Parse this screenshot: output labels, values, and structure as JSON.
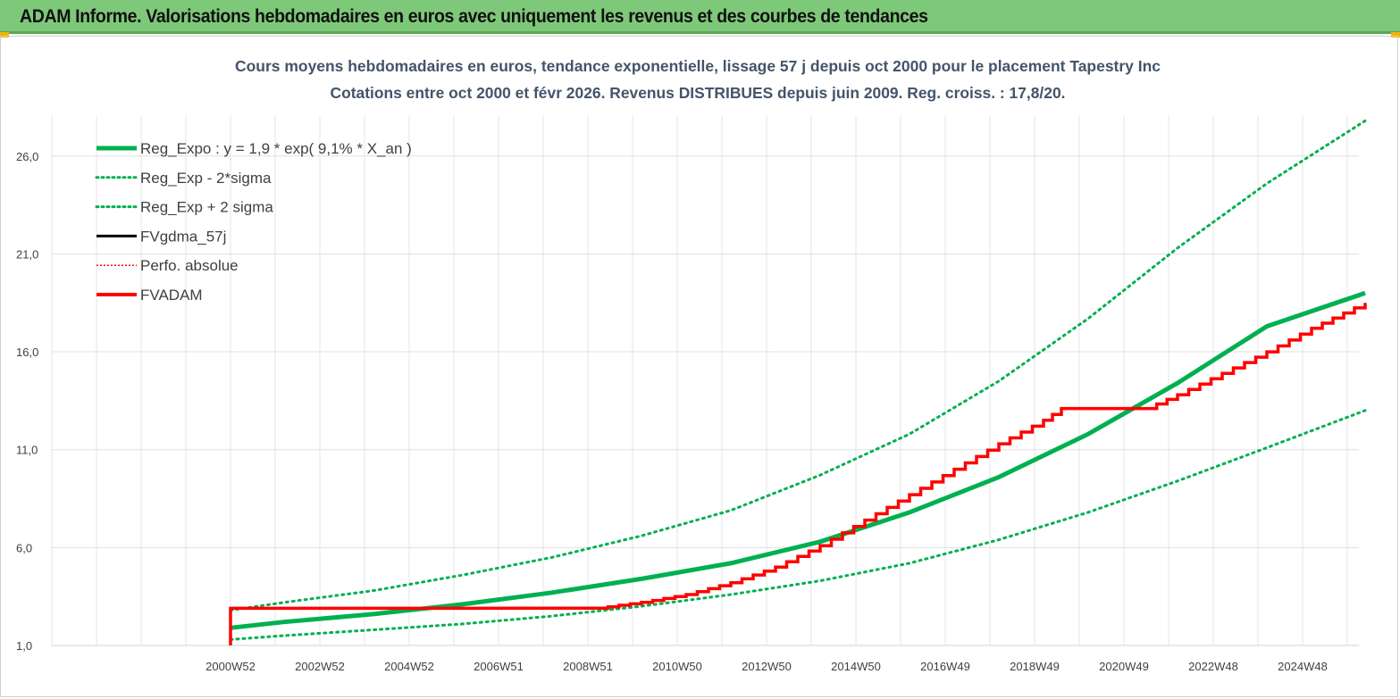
{
  "header": {
    "title": "ADAM Informe. Valorisations hebdomadaires en euros avec uniquement les revenus et des courbes de tendances"
  },
  "colors": {
    "header_bg": "#7ec87a",
    "reg_green": "#00b050",
    "fvadam_red": "#ff0000",
    "black": "#000000"
  },
  "chart_data": {
    "type": "line",
    "title_lines": [
      "Cours moyens hebdomadaires en euros, tendance exponentielle, lissage 57 j depuis oct 2000 pour le placement Tapestry Inc",
      "Cotations entre oct 2000 et févr 2026. Revenus DISTRIBUES depuis juin 2009. Reg. croiss. : 17,8/20."
    ],
    "y_ticks": [
      "1,0",
      "6,0",
      "11,0",
      "16,0",
      "21,0",
      "26,0"
    ],
    "ylim": [
      1.0,
      28.0
    ],
    "x_tick_labels": [
      "2000W52",
      "2002W52",
      "2004W52",
      "2006W51",
      "2008W51",
      "2010W50",
      "2012W50",
      "2014W50",
      "2016W49",
      "2018W49",
      "2020W49",
      "2022W48",
      "2024W48"
    ],
    "xlim": [
      1996.8,
      2026.2
    ],
    "legend_placement": "top-left",
    "legend": [
      {
        "label": "Reg_Expo : y = 1,9 * exp( 9,1% *  X_an )",
        "style": "solid-thick",
        "color": "#00b050"
      },
      {
        "label": "Reg_Exp - 2*sigma",
        "style": "dotted",
        "color": "#00b050"
      },
      {
        "label": "Reg_Exp + 2 sigma",
        "style": "dotted",
        "color": "#00b050"
      },
      {
        "label": "FVgdma_57j",
        "style": "solid",
        "color": "#000000"
      },
      {
        "label": "Perfo. absolue",
        "style": "dotted-thin",
        "color": "#ff0000"
      },
      {
        "label": "FVADAM",
        "style": "solid-thick",
        "color": "#ff0000"
      }
    ],
    "series": [
      {
        "name": "Reg_Expo : y = 1,9 * exp( 9,1% *  X_an )",
        "x": [
          2000.8,
          2002,
          2004,
          2006,
          2008,
          2010,
          2012,
          2014,
          2016,
          2018,
          2020,
          2022,
          2024,
          2026.2
        ],
        "values": [
          1.9,
          2.2,
          2.6,
          3.1,
          3.7,
          4.4,
          5.2,
          6.3,
          7.8,
          9.6,
          11.8,
          14.4,
          17.3,
          19.0
        ]
      },
      {
        "name": "Reg_Exp - 2*sigma",
        "x": [
          2000.8,
          2002,
          2004,
          2006,
          2008,
          2010,
          2012,
          2014,
          2016,
          2018,
          2020,
          2022,
          2024,
          2026.2
        ],
        "values": [
          1.3,
          1.5,
          1.8,
          2.1,
          2.5,
          3.0,
          3.6,
          4.3,
          5.2,
          6.4,
          7.8,
          9.4,
          11.1,
          13.0
        ]
      },
      {
        "name": "Reg_Exp + 2 sigma",
        "x": [
          2000.8,
          2002,
          2004,
          2006,
          2008,
          2010,
          2012,
          2014,
          2016,
          2018,
          2020,
          2022,
          2024,
          2026.2
        ],
        "values": [
          2.8,
          3.2,
          3.8,
          4.6,
          5.5,
          6.6,
          7.9,
          9.7,
          11.8,
          14.5,
          17.7,
          21.3,
          24.6,
          27.8
        ]
      },
      {
        "name": "FVADAM",
        "x": [
          2000.8,
          2000.8,
          2009.0,
          2010.0,
          2011.0,
          2012.0,
          2013.0,
          2014.0,
          2015.0,
          2016.0,
          2017.0,
          2018.0,
          2019.0,
          2019.4,
          2021.3,
          2022.0,
          2023.0,
          2024.0,
          2025.0,
          2026.2
        ],
        "values": [
          1.0,
          2.9,
          2.9,
          3.2,
          3.6,
          4.2,
          5.0,
          6.1,
          7.4,
          8.7,
          10.0,
          11.3,
          12.5,
          13.1,
          13.1,
          13.8,
          14.9,
          16.0,
          17.2,
          18.5
        ]
      }
    ]
  }
}
